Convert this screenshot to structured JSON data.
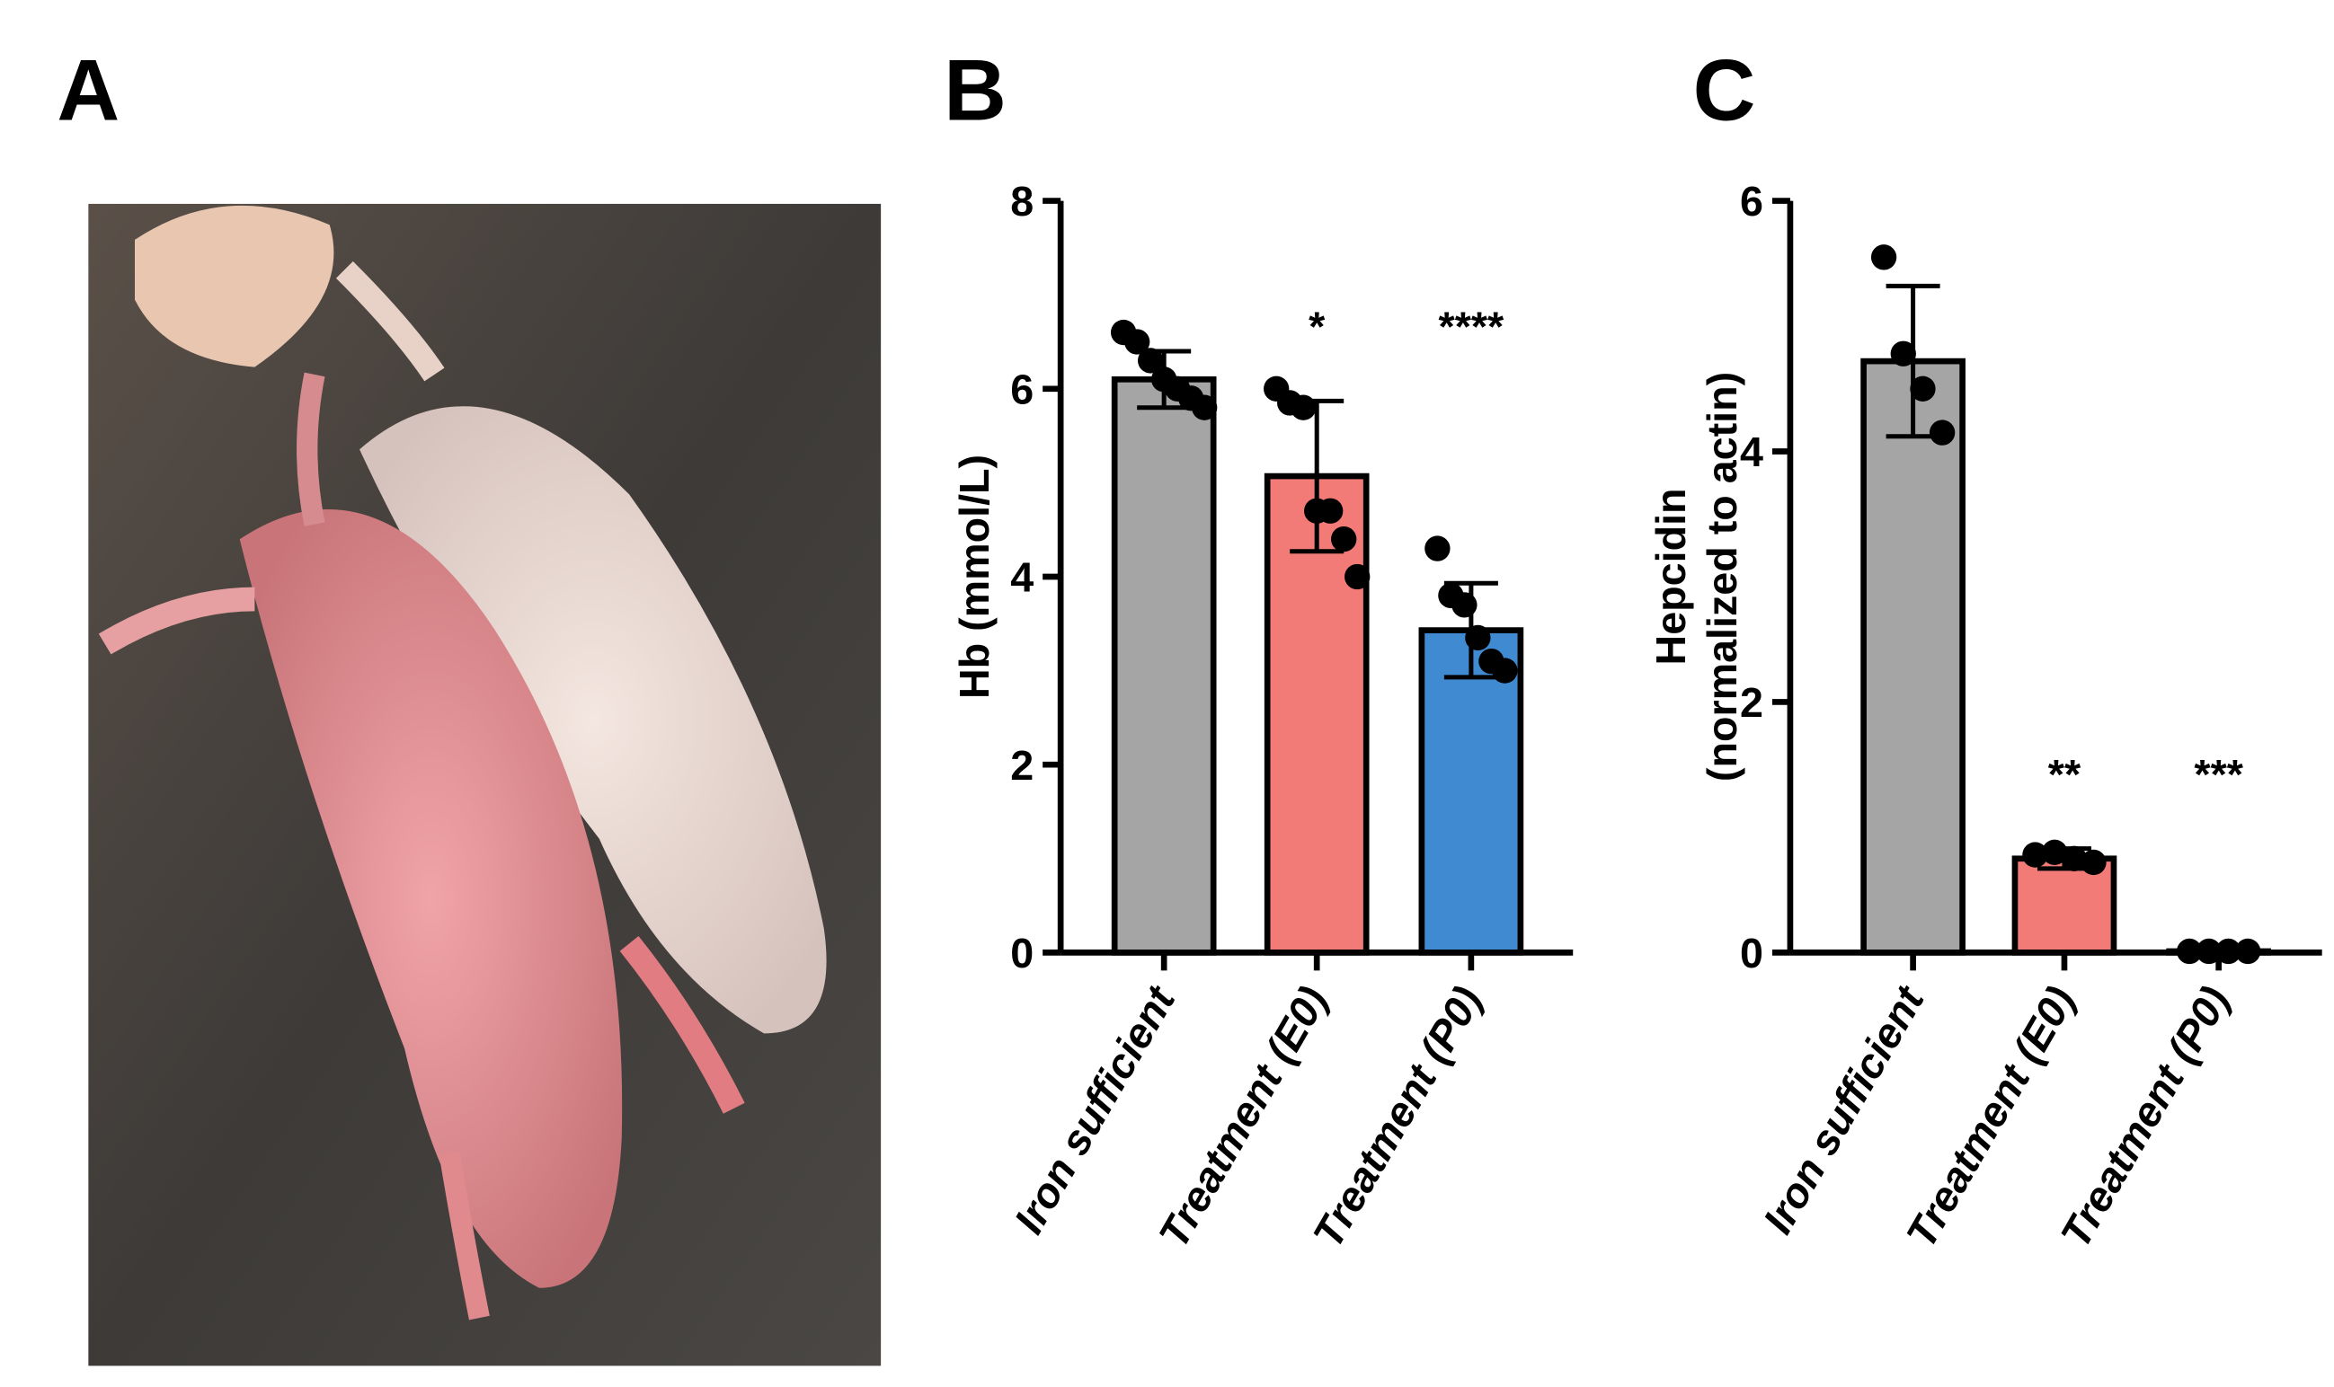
{
  "photo_panel": {
    "label": "A"
  },
  "chart_data": [
    {
      "type": "bar",
      "panel_label": "B",
      "ylabel": [
        "Hb (mmol/L)"
      ],
      "categories": [
        "Iron sufficient",
        "Treatment (E0)",
        "Treatment (P0)"
      ],
      "values": [
        6.1,
        5.07,
        3.43
      ],
      "errors": [
        0.3,
        0.8,
        0.5
      ],
      "points": [
        [
          6.6,
          6.5,
          6.3,
          6.1,
          6.0,
          5.9,
          5.8
        ],
        [
          6.0,
          5.85,
          5.8,
          4.7,
          4.7,
          4.4,
          4.0
        ],
        [
          4.3,
          3.8,
          3.7,
          3.35,
          3.1,
          3.0
        ]
      ],
      "annotations": [
        null,
        "*",
        "****"
      ],
      "colors": [
        "#a5a5a5",
        "#f27b77",
        "#3f8ad0"
      ],
      "ylim": [
        0,
        8
      ],
      "yticks": [
        0,
        2,
        4,
        6,
        8
      ]
    },
    {
      "type": "bar",
      "panel_label": "C",
      "ylabel": [
        "Hepcidin",
        "(normalized to actin)"
      ],
      "categories": [
        "Iron sufficient",
        "Treatment (E0)",
        "Treatment (P0)"
      ],
      "values": [
        4.72,
        0.75,
        0.01
      ],
      "errors": [
        0.6,
        0.08,
        0
      ],
      "points": [
        [
          5.55,
          4.78,
          4.5,
          4.15
        ],
        [
          0.78,
          0.8,
          0.75,
          0.72
        ],
        [
          0.01,
          0.01,
          0.01,
          0.01
        ]
      ],
      "annotations": [
        null,
        "**",
        "***"
      ],
      "colors": [
        "#a5a5a5",
        "#f27b77",
        "#3f8ad0"
      ],
      "ylim": [
        0,
        6
      ],
      "yticks": [
        0,
        2,
        4,
        6
      ]
    }
  ]
}
